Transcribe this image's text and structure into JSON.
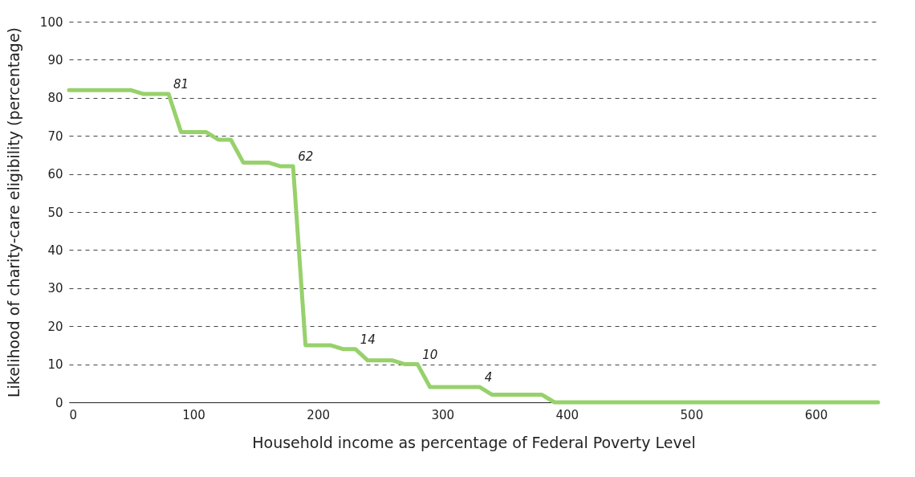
{
  "chart_data": {
    "type": "line",
    "xlabel": "Household income as percentage of Federal Poverty Level",
    "ylabel": "Likelihood of charity-care eligibility (percentage)",
    "x": [
      0,
      50,
      60,
      80,
      90,
      110,
      120,
      130,
      140,
      160,
      170,
      180,
      190,
      210,
      220,
      230,
      240,
      260,
      270,
      280,
      290,
      330,
      340,
      380,
      390,
      650
    ],
    "series": [
      {
        "color": "#97d16b",
        "values": [
          82,
          82,
          81,
          81,
          71,
          71,
          69,
          69,
          63,
          63,
          62,
          62,
          15,
          15,
          14,
          14,
          11,
          11,
          10,
          10,
          4,
          4,
          2,
          2,
          0,
          0
        ]
      }
    ],
    "xlim": [
      0,
      650
    ],
    "xticks": [
      0,
      100,
      200,
      300,
      400,
      500,
      600
    ],
    "ylim": [
      0,
      100
    ],
    "yticks": [
      0,
      10,
      20,
      30,
      40,
      50,
      60,
      70,
      80,
      90,
      100
    ],
    "grid": "y",
    "marker": "none",
    "line_style": "solid",
    "annotations": [
      {
        "text": "81",
        "x": 80,
        "y": 81
      },
      {
        "text": "62",
        "x": 180,
        "y": 62
      },
      {
        "text": "14",
        "x": 230,
        "y": 14
      },
      {
        "text": "10",
        "x": 280,
        "y": 10
      },
      {
        "text": "4",
        "x": 330,
        "y": 4
      }
    ]
  }
}
